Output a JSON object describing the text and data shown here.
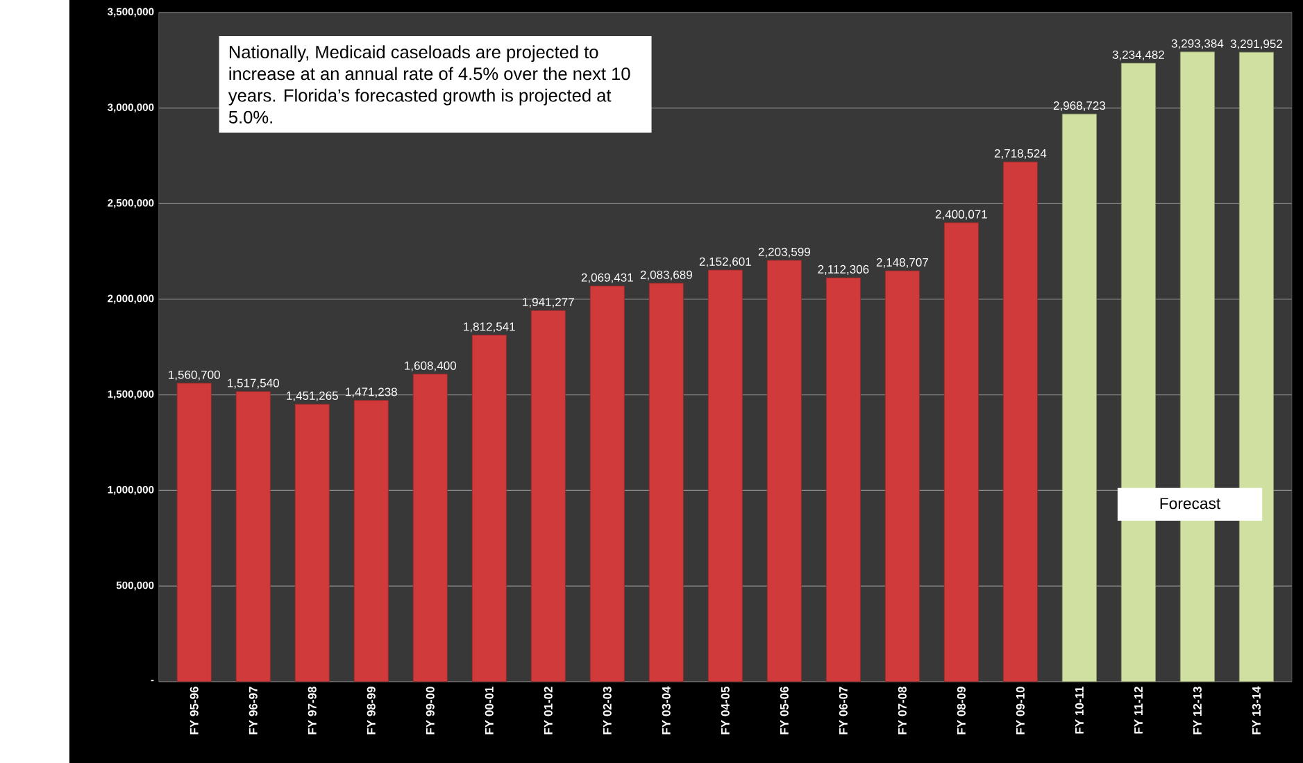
{
  "chart_data": {
    "type": "bar",
    "categories": [
      "FY 95-96",
      "FY 96-97",
      "FY 97-98",
      "FY 98-99",
      "FY 99-00",
      "FY 00-01",
      "FY 01-02",
      "FY 02-03",
      "FY 03-04",
      "FY 04-05",
      "FY 05-06",
      "FY 06-07",
      "FY 07-08",
      "FY 08-09",
      "FY 09-10",
      "FY 10-11",
      "FY 11-12",
      "FY 12-13",
      "FY 13-14"
    ],
    "values": [
      1560700,
      1517540,
      1451265,
      1471238,
      1608400,
      1812541,
      1941277,
      2069431,
      2083689,
      2152601,
      2203599,
      2112306,
      2148707,
      2400071,
      2718524,
      2968723,
      3234482,
      3293384,
      3291952
    ],
    "value_labels": [
      "1,560,700",
      "1,517,540",
      "1,451,265",
      "1,471,238",
      "1,608,400",
      "1,812,541",
      "1,941,277",
      "2,069,431",
      "2,083,689",
      "2,152,601",
      "2,203,599",
      "2,112,306",
      "2,148,707",
      "2,400,071",
      "2,718,524",
      "2,968,723",
      "3,234,482",
      "3,293,384",
      "3,291,952"
    ],
    "colors": [
      "#d03a3a",
      "#d03a3a",
      "#d03a3a",
      "#d03a3a",
      "#d03a3a",
      "#d03a3a",
      "#d03a3a",
      "#d03a3a",
      "#d03a3a",
      "#d03a3a",
      "#d03a3a",
      "#d03a3a",
      "#d03a3a",
      "#d03a3a",
      "#d03a3a",
      "#cfe0a0",
      "#cfe0a0",
      "#cfe0a0",
      "#cfe0a0"
    ],
    "ylim": [
      0,
      3500000
    ],
    "yticks": [
      {
        "value": 0,
        "label": "-"
      },
      {
        "value": 500000,
        "label": "500,000"
      },
      {
        "value": 1000000,
        "label": "1,000,000"
      },
      {
        "value": 1500000,
        "label": "1,500,000"
      },
      {
        "value": 2000000,
        "label": "2,000,000"
      },
      {
        "value": 2500000,
        "label": "2,500,000"
      },
      {
        "value": 3000000,
        "label": "3,000,000"
      },
      {
        "value": 3500000,
        "label": "3,500,000"
      }
    ],
    "grid": "y",
    "annotations": [
      "Nationally, Medicaid caseloads are projected to increase at an annual rate of 4.5% over the next 10 years.  Florida’s forecasted growth is projected at  5.0%.",
      "Forecast"
    ]
  }
}
